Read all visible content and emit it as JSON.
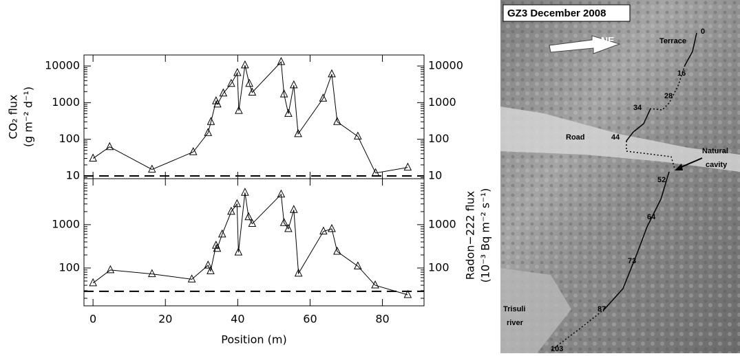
{
  "chart_data": [
    {
      "type": "line",
      "ylabel": [
        "CO₂ flux",
        "(g m⁻² d⁻¹)"
      ],
      "log_y": true,
      "color": "#000000",
      "marker": "triangle",
      "x": [
        0,
        4.6,
        16.3,
        27.7,
        31.8,
        32.6,
        34,
        34.4,
        36,
        38.2,
        39.9,
        40.3,
        42,
        43.2,
        44,
        52,
        52.8,
        54,
        55.5,
        56.7,
        63.6,
        66,
        67.5,
        73.2,
        78.1,
        87
      ],
      "values": [
        30,
        62,
        15,
        45,
        150,
        300,
        1100,
        900,
        1800,
        3300,
        6500,
        600,
        10500,
        3300,
        1900,
        13000,
        1700,
        500,
        3000,
        140,
        1300,
        6000,
        300,
        120,
        12,
        17
      ],
      "xlim": [
        -2.5,
        91.5
      ],
      "xticks": [
        0,
        20,
        40,
        60,
        80
      ],
      "ylim": [
        8.4,
        20000
      ],
      "yticks": [
        10,
        100,
        1000,
        10000
      ],
      "detection_limit": 10
    },
    {
      "type": "line",
      "ylabel_right": [
        "Radon−222 flux",
        "(10⁻³ Bq m⁻² s⁻¹)"
      ],
      "xlabel": "Position (m)",
      "log_y": true,
      "color": "#000000",
      "marker": "triangle",
      "x": [
        0,
        4.8,
        16.3,
        27.3,
        31.8,
        32.5,
        34,
        34.3,
        35.7,
        38.2,
        39.8,
        40.2,
        42,
        43,
        44,
        52,
        52.8,
        54,
        55.5,
        56.8,
        63.7,
        66,
        67.5,
        73.2,
        78,
        87
      ],
      "values": [
        45,
        90,
        73,
        55,
        115,
        85,
        330,
        280,
        600,
        2000,
        3000,
        230,
        5500,
        1500,
        1050,
        5000,
        1100,
        800,
        2200,
        75,
        700,
        800,
        240,
        110,
        40,
        24
      ],
      "xlim": [
        -2.5,
        91.5
      ],
      "xticks": [
        0,
        20,
        40,
        60,
        80
      ],
      "ylim": [
        13.4,
        11500
      ],
      "yticks": [
        100,
        1000
      ],
      "detection_limit": 29
    }
  ],
  "photo": {
    "title": "GZ3 December 2008",
    "direction": "NE",
    "labels": [
      "Terrace",
      "0",
      "16",
      "28",
      "34",
      "Road",
      "44",
      "Natural",
      "cavity",
      "52",
      "64",
      "73",
      "87",
      "Trisuli",
      "river",
      "103"
    ]
  }
}
